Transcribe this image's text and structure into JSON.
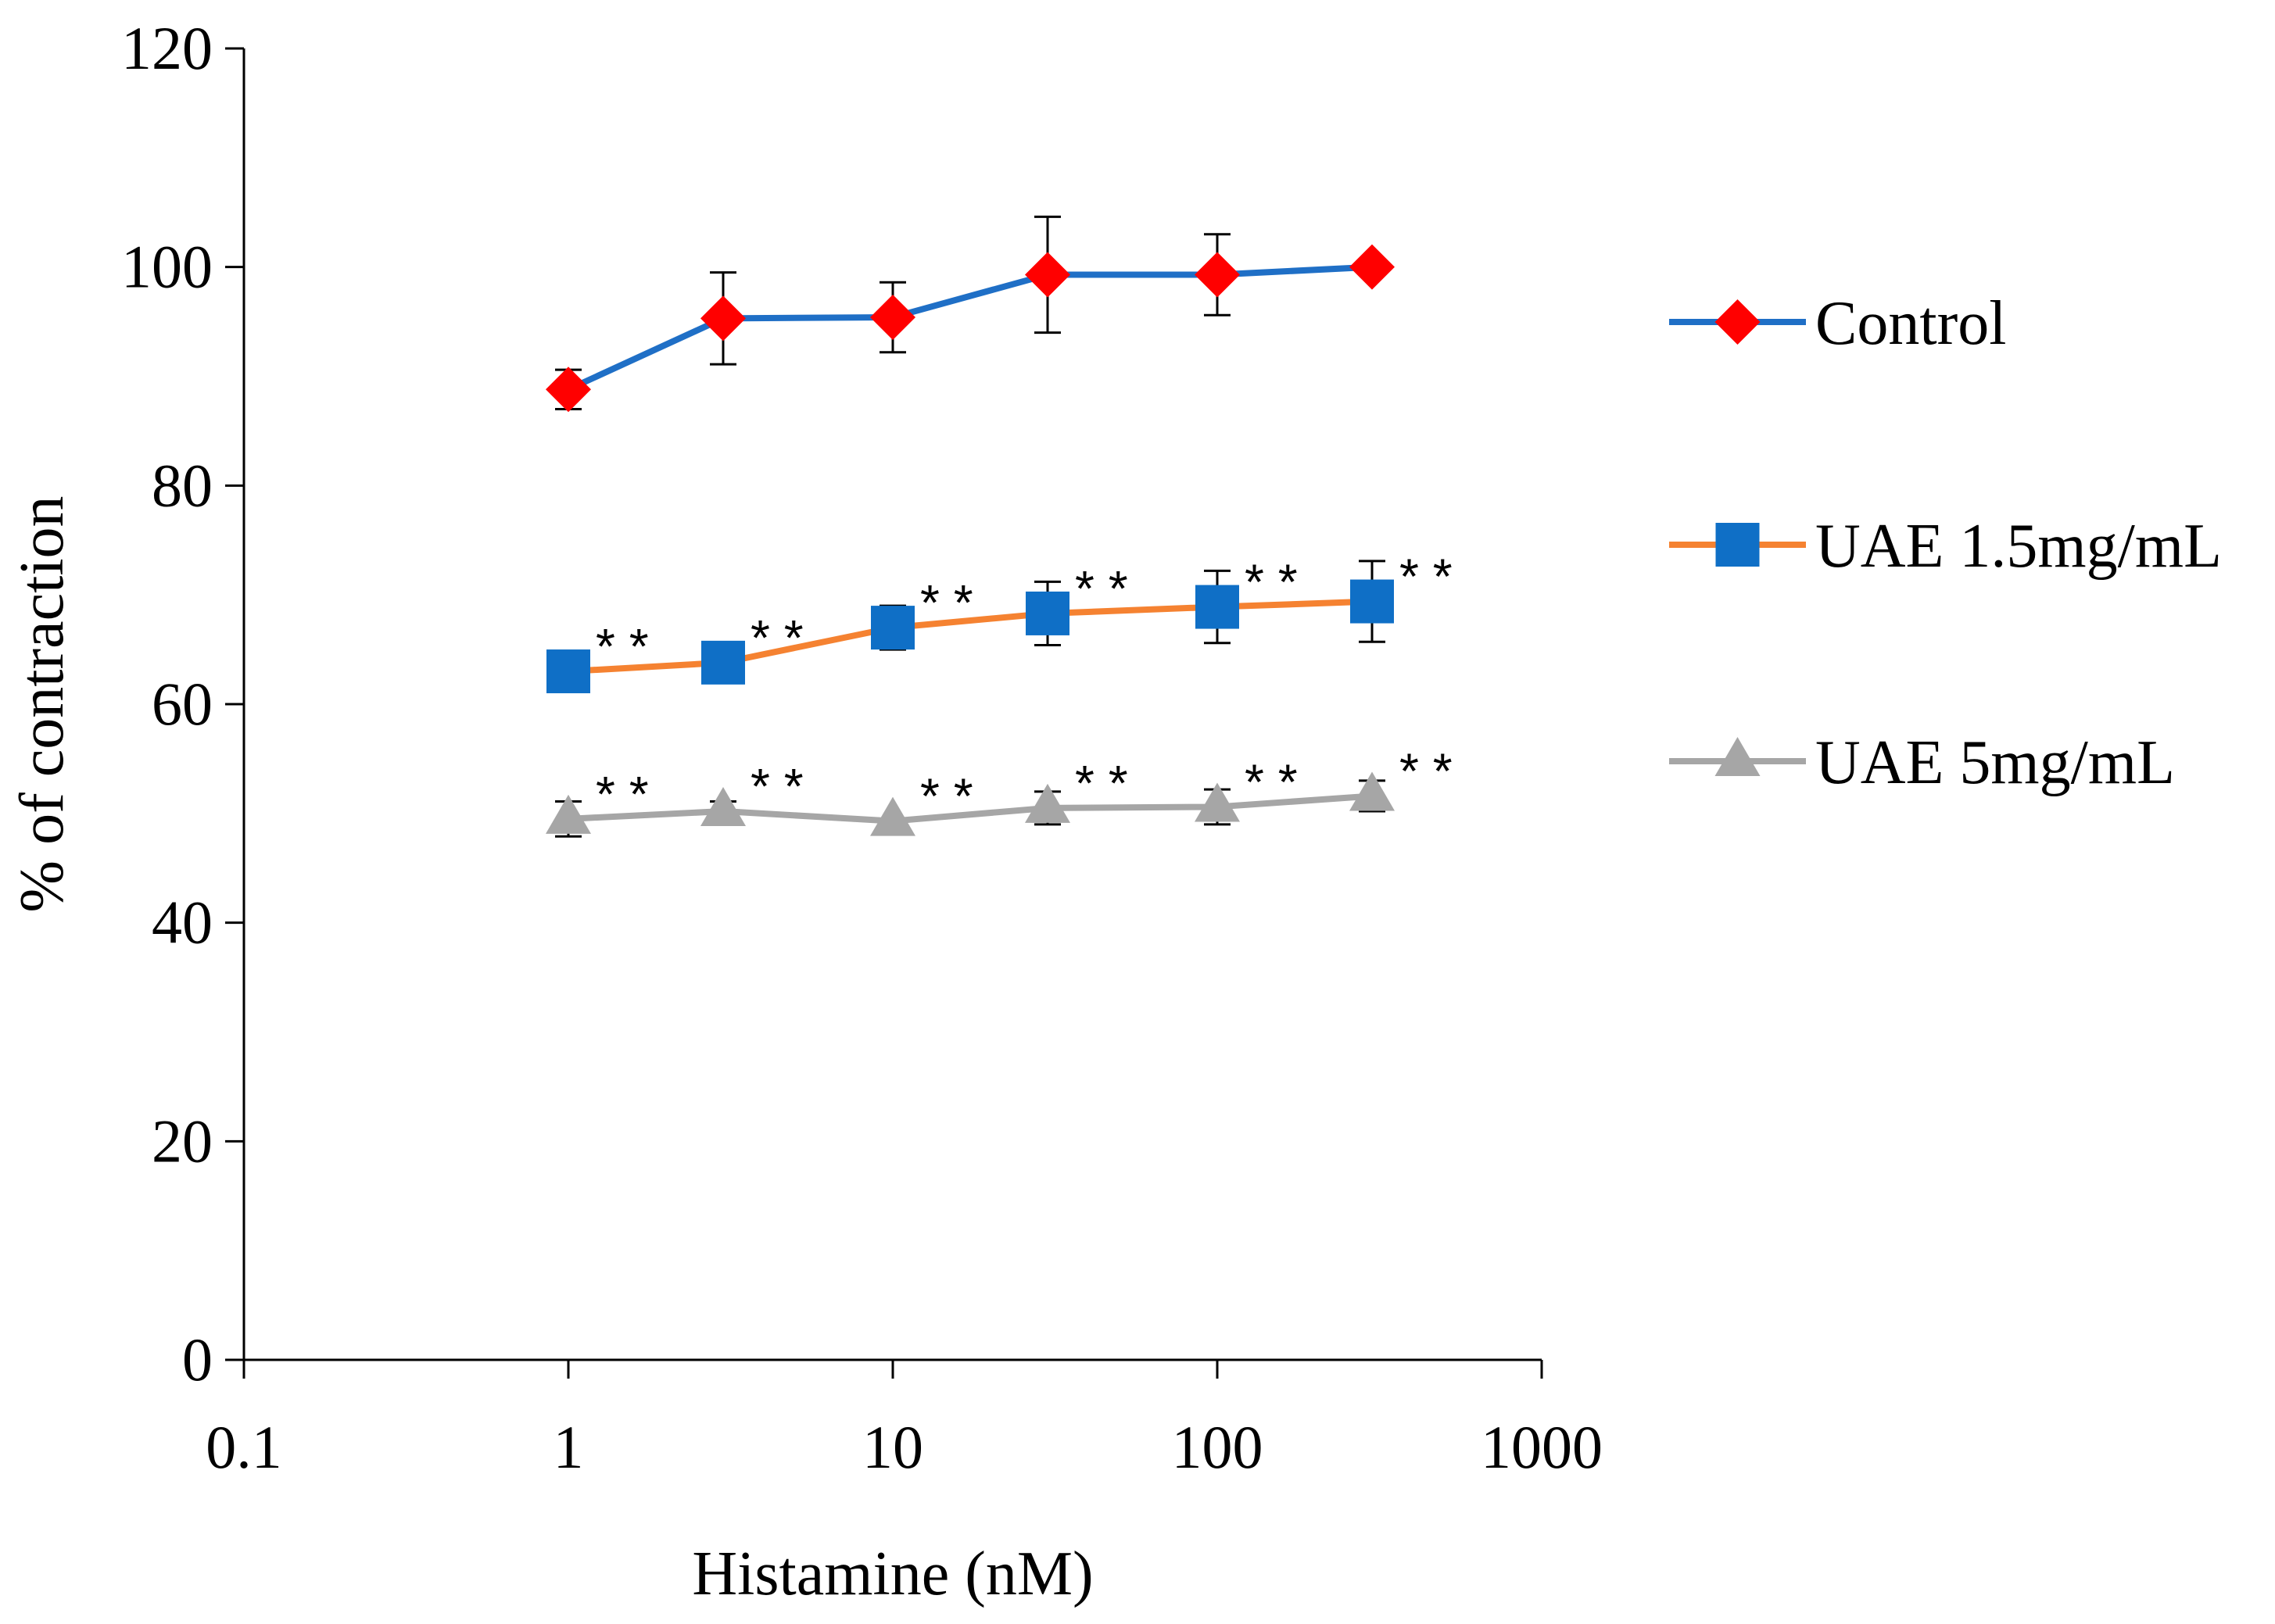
{
  "chart_data": {
    "type": "line",
    "title": "",
    "xlabel": "Histamine (nM)",
    "ylabel": "%  of contraction",
    "x_scale": "log",
    "xlim": [
      0.1,
      1000
    ],
    "ylim": [
      0,
      120
    ],
    "x_ticks": [
      0.1,
      1,
      10,
      100,
      1000
    ],
    "x_tick_labels": [
      "0.1",
      "1",
      "10",
      "100",
      "1000"
    ],
    "y_ticks": [
      0,
      20,
      40,
      60,
      80,
      100,
      120
    ],
    "y_tick_labels": [
      "0",
      "20",
      "40",
      "60",
      "80",
      "100",
      "120"
    ],
    "grid": false,
    "legend_position": "right",
    "x": [
      1,
      3,
      10,
      30,
      100,
      300
    ],
    "series": [
      {
        "name": "Control",
        "line_color": "#1f6fc6",
        "marker": "diamond",
        "marker_color": "#ff0000",
        "values": [
          88.8,
          95.3,
          95.4,
          99.3,
          99.3,
          100.0
        ],
        "errors": [
          1.8,
          4.2,
          3.2,
          5.3,
          3.7,
          0.0
        ],
        "annotations": [
          "",
          "",
          "",
          "",
          "",
          ""
        ]
      },
      {
        "name": "UAE 1.5mg/mL",
        "line_color": "#f58231",
        "marker": "square",
        "marker_color": "#0f6fc6",
        "values": [
          63.0,
          63.8,
          67.0,
          68.3,
          68.9,
          69.4
        ],
        "errors": [
          0.0,
          0.0,
          2.0,
          2.9,
          3.3,
          3.7
        ],
        "annotations": [
          "* *",
          "* *",
          "* *",
          "* *",
          "* *",
          "* *"
        ]
      },
      {
        "name": "UAE 5mg/mL",
        "line_color": "#a6a6a6",
        "marker": "triangle",
        "marker_color": "#a6a6a6",
        "values": [
          49.5,
          50.2,
          49.3,
          50.5,
          50.6,
          51.6
        ],
        "errors": [
          1.6,
          0.9,
          0.0,
          1.5,
          1.6,
          1.4
        ],
        "annotations": [
          "* *",
          "* *",
          "* *",
          "* *",
          "* *",
          "* *"
        ]
      }
    ]
  }
}
